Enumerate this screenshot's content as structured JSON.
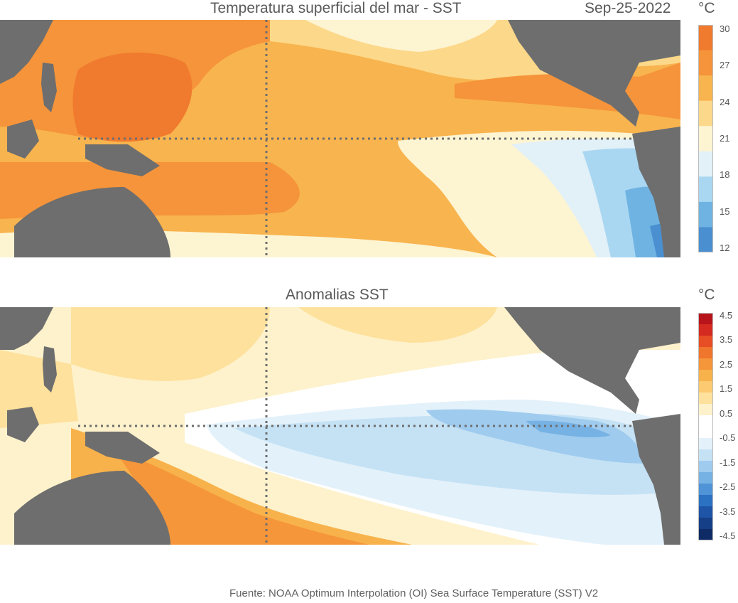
{
  "sst_panel": {
    "title": "Temperatura superficial del mar - SST",
    "date": "Sep-25-2022",
    "unit": "°C",
    "colorbar": {
      "ticks": [
        "30",
        "27",
        "24",
        "21",
        "18",
        "15",
        "12"
      ],
      "colors": [
        "#f07a2e",
        "#f5943a",
        "#f8b44e",
        "#fcd88a",
        "#fdf4d2",
        "#e2f0f8",
        "#a9d7f2",
        "#6fb3e2",
        "#4a8fd0"
      ]
    }
  },
  "anomaly_panel": {
    "title": "Anomalias SST",
    "unit": "°C",
    "colorbar": {
      "ticks": [
        "4.5",
        "3.5",
        "2.5",
        "1.5",
        "0.5",
        "-0.5",
        "-1.5",
        "-2.5",
        "-3.5",
        "-4.5"
      ],
      "colors": [
        "#b8141b",
        "#d42a20",
        "#e84e25",
        "#f0752d",
        "#f5963a",
        "#f8b24b",
        "#fcca70",
        "#fde19c",
        "#fef2cc",
        "#ffffff",
        "#ffffff",
        "#e3f1fa",
        "#c5e2f5",
        "#9fcbee",
        "#77b2e4",
        "#4f94d6",
        "#2b72c3",
        "#1e55a6",
        "#153f86",
        "#0f2b66"
      ]
    }
  },
  "footer": "Fuente: NOAA Optimum Interpolation (OI) Sea Surface Temperature (SST) V2"
}
